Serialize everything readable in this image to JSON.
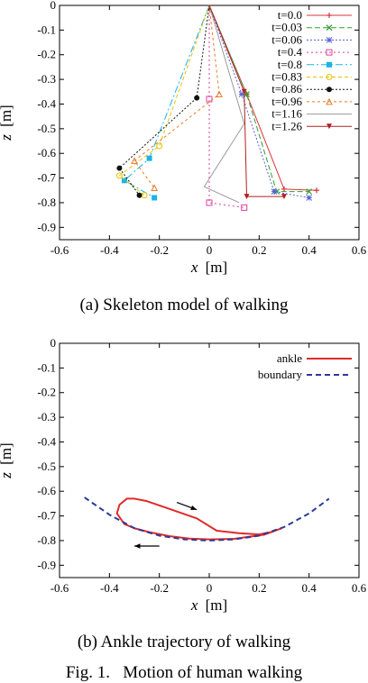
{
  "chart_data": [
    {
      "type": "line",
      "caption": "(a) Skeleton model of walking",
      "xlabel_var": "x",
      "xlabel_unit": "[m]",
      "ylabel_var": "z",
      "ylabel_unit": "[m]",
      "xlim": [
        -0.6,
        0.6
      ],
      "ylim": [
        -0.95,
        0
      ],
      "xticks": [
        "-0.6",
        "-0.4",
        "-0.2",
        "0",
        "0.2",
        "0.4",
        "0.6"
      ],
      "yticks": [
        "0",
        "-0.1",
        "-0.2",
        "-0.3",
        "-0.4",
        "-0.5",
        "-0.6",
        "-0.7",
        "-0.8",
        "-0.9"
      ],
      "legend_position": "top-right",
      "series": [
        {
          "name": "t=0.0",
          "color": "#d9363e",
          "dash": "",
          "marker": "plus",
          "x": [
            0,
            0.15,
            0.3,
            0.43
          ],
          "y": [
            0,
            -0.36,
            -0.745,
            -0.75
          ]
        },
        {
          "name": "t=0.03",
          "color": "#2ea02e",
          "dash": "6,3",
          "marker": "cross",
          "x": [
            0,
            0.15,
            0.27,
            0.4
          ],
          "y": [
            0,
            -0.36,
            -0.755,
            -0.755
          ]
        },
        {
          "name": "t=0.06",
          "color": "#5a5fd8",
          "dash": "2,2",
          "marker": "star",
          "x": [
            0,
            0.13,
            0.26,
            0.4
          ],
          "y": [
            0,
            -0.36,
            -0.755,
            -0.78
          ]
        },
        {
          "name": "t=0.4",
          "color": "#e0409a",
          "dash": "2,3",
          "marker": "square-open",
          "x": [
            0,
            0.0,
            0.0,
            0.14
          ],
          "y": [
            0,
            -0.38,
            -0.8,
            -0.82
          ]
        },
        {
          "name": "t=0.8",
          "color": "#18b4e8",
          "dash": "8,3,2,3",
          "marker": "square",
          "x": [
            0,
            -0.24,
            -0.34,
            -0.22
          ],
          "y": [
            0,
            -0.62,
            -0.71,
            -0.78
          ]
        },
        {
          "name": "t=0.83",
          "color": "#e8c000",
          "dash": "4,3",
          "marker": "circle-open",
          "x": [
            0,
            -0.2,
            -0.36,
            -0.26
          ],
          "y": [
            0,
            -0.57,
            -0.69,
            -0.77
          ]
        },
        {
          "name": "t=0.86",
          "color": "#111111",
          "dash": "2,2",
          "marker": "circle",
          "x": [
            0,
            -0.05,
            -0.36,
            -0.28
          ],
          "y": [
            0,
            -0.375,
            -0.66,
            -0.77
          ]
        },
        {
          "name": "t=0.96",
          "color": "#e87a2a",
          "dash": "3,3",
          "marker": "triangle-open",
          "x": [
            0,
            0.04,
            -0.3,
            -0.22
          ],
          "y": [
            0,
            -0.36,
            -0.63,
            -0.74
          ]
        },
        {
          "name": "t=1.16",
          "color": "#999999",
          "dash": "",
          "marker": "none",
          "x": [
            0,
            0.14,
            -0.02,
            0.12
          ],
          "y": [
            0,
            -0.48,
            -0.735,
            -0.8
          ]
        },
        {
          "name": "t=1.26",
          "color": "#b22020",
          "dash": "",
          "marker": "triangle-down",
          "x": [
            0,
            0.14,
            0.15,
            0.3
          ],
          "y": [
            0,
            -0.35,
            -0.775,
            -0.775
          ]
        }
      ]
    },
    {
      "type": "line",
      "caption": "(b) Ankle trajectory of walking",
      "xlabel_var": "x",
      "xlabel_unit": "[m]",
      "ylabel_var": "z",
      "ylabel_unit": "[m]",
      "xlim": [
        -0.6,
        0.6
      ],
      "ylim": [
        -0.95,
        0
      ],
      "xticks": [
        "-0.6",
        "-0.4",
        "-0.2",
        "0",
        "0.2",
        "0.4",
        "0.6"
      ],
      "yticks": [
        "0",
        "-0.1",
        "-0.2",
        "-0.3",
        "-0.4",
        "-0.5",
        "-0.6",
        "-0.7",
        "-0.8",
        "-0.9"
      ],
      "legend_position": "top-right",
      "series": [
        {
          "name": "ankle",
          "color": "#e02a2a",
          "dash": "",
          "x": [
            0.29,
            0.22,
            0.1,
            0.0,
            -0.08,
            -0.16,
            -0.24,
            -0.3,
            -0.34,
            -0.37,
            -0.36,
            -0.33,
            -0.3,
            -0.25,
            -0.15,
            -0.05,
            0.03,
            0.12,
            0.2,
            0.25,
            0.29
          ],
          "y": [
            -0.75,
            -0.776,
            -0.793,
            -0.795,
            -0.792,
            -0.782,
            -0.766,
            -0.75,
            -0.733,
            -0.69,
            -0.655,
            -0.63,
            -0.63,
            -0.64,
            -0.675,
            -0.71,
            -0.76,
            -0.77,
            -0.775,
            -0.765,
            -0.75
          ]
        },
        {
          "name": "boundary",
          "color": "#2b3a9a",
          "dash": "6,4",
          "x": [
            -0.5,
            -0.4,
            -0.3,
            -0.2,
            -0.1,
            0.0,
            0.1,
            0.2,
            0.3,
            0.4,
            0.48
          ],
          "y": [
            -0.625,
            -0.695,
            -0.75,
            -0.78,
            -0.795,
            -0.8,
            -0.795,
            -0.78,
            -0.745,
            -0.69,
            -0.63
          ]
        }
      ],
      "arrows": [
        {
          "from": [
            -0.13,
            -0.645
          ],
          "to": [
            -0.05,
            -0.675
          ]
        },
        {
          "from": [
            -0.2,
            -0.822
          ],
          "to": [
            -0.3,
            -0.822
          ]
        }
      ]
    }
  ],
  "figure_caption": "Fig. 1.   Motion of human walking"
}
